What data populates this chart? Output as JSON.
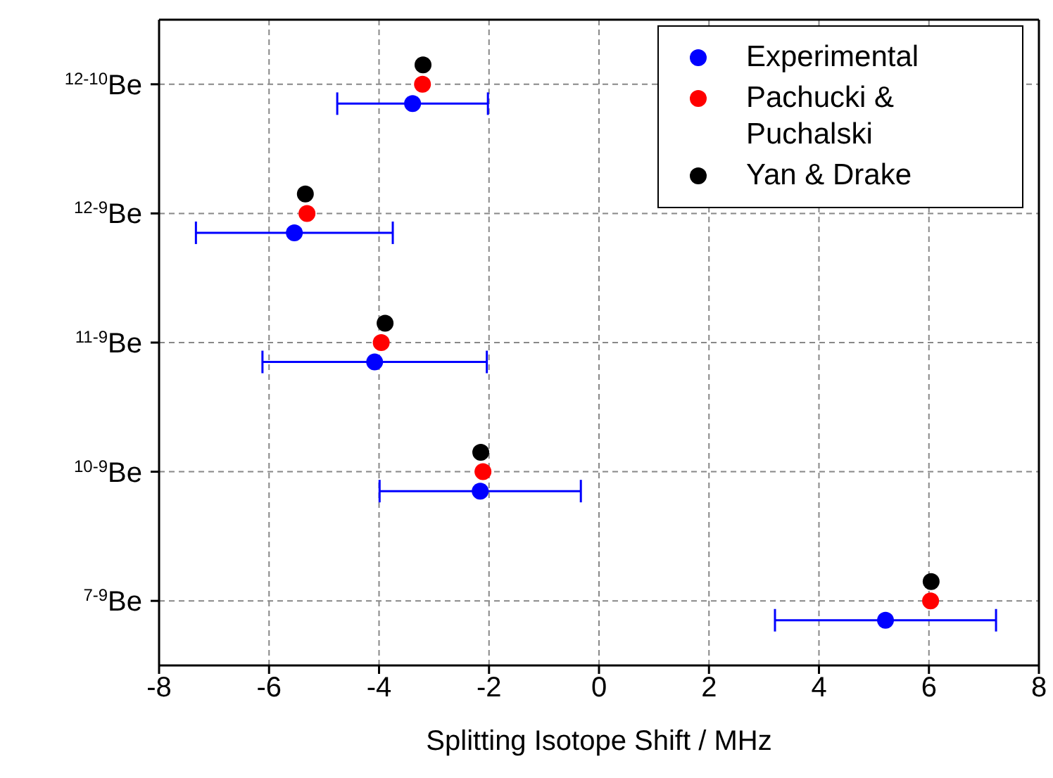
{
  "chart_data": {
    "type": "scatter",
    "orientation": "horizontal",
    "xlabel": "Splitting Isotope Shift / MHz",
    "categories": [
      "$^{12-10}$Be",
      "$^{12-9}$Be",
      "$^{11-9}$Be",
      "$^{10-9}$Be",
      "$^{7-9}$Be"
    ],
    "series": [
      {
        "name": "Experimental",
        "color": "#0000ff",
        "values": [
          -3.39,
          -5.54,
          -4.08,
          -2.16,
          5.21
        ],
        "errors": [
          1.37,
          1.79,
          2.04,
          1.83,
          2.01
        ]
      },
      {
        "name": "Pachucki & Puchalski",
        "color": "#ff0000",
        "values": [
          -3.21,
          -5.31,
          -3.96,
          -2.11,
          6.03
        ]
      },
      {
        "name": "Yan & Drake",
        "color": "#000000",
        "values": [
          -3.2,
          -5.34,
          -3.89,
          -2.15,
          6.04
        ]
      }
    ],
    "xlim": [
      -8,
      8
    ],
    "xticks": [
      -8,
      -6,
      -4,
      -2,
      0,
      2,
      4,
      6,
      8
    ],
    "grid": true,
    "legend": "top right",
    "marker": "circle"
  }
}
